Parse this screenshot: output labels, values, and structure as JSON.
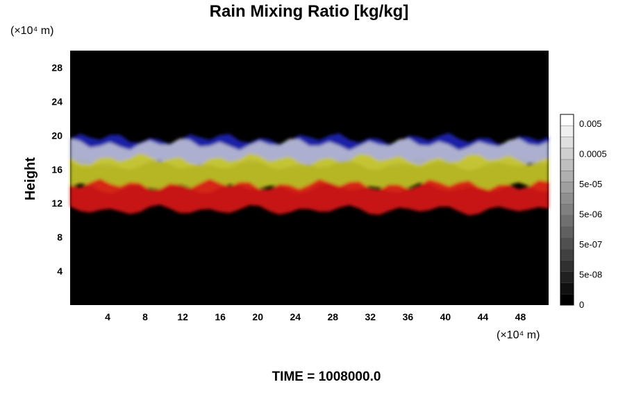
{
  "chart_data": {
    "type": "heatmap",
    "title": "Rain Mixing Ratio [kg/kg]",
    "ylabel": "Height",
    "y_unit": "(×10⁴ m)",
    "x_unit": "(×10⁴ m)",
    "xlim": [
      0,
      51
    ],
    "ylim": [
      0,
      30
    ],
    "x_ticks": [
      4,
      8,
      12,
      16,
      20,
      24,
      28,
      32,
      36,
      40,
      44,
      48
    ],
    "y_ticks": [
      4,
      8,
      12,
      16,
      20,
      24,
      28
    ],
    "background_color": "#000000",
    "layers": [
      {
        "color": "#1c22b4",
        "bottom": 16.8,
        "top": 19.6,
        "description_color": "blue"
      },
      {
        "color": "#b9bcd2",
        "bottom": 16.5,
        "top": 19.0,
        "description_color": "whitish"
      },
      {
        "color": "#c6c628",
        "bottom": 13.8,
        "top": 17.2,
        "description_color": "yellow"
      },
      {
        "color": "#d81818",
        "bottom": 11.2,
        "top": 14.2,
        "description_color": "red"
      }
    ],
    "colorbar": {
      "labels": [
        "0.005",
        "0.0005",
        "5e-05",
        "5e-06",
        "5e-07",
        "5e-08",
        "0"
      ],
      "levels": 17,
      "colors": [
        "#000000",
        "#ffffff"
      ]
    },
    "footer": "TIME = 1008000.0"
  }
}
